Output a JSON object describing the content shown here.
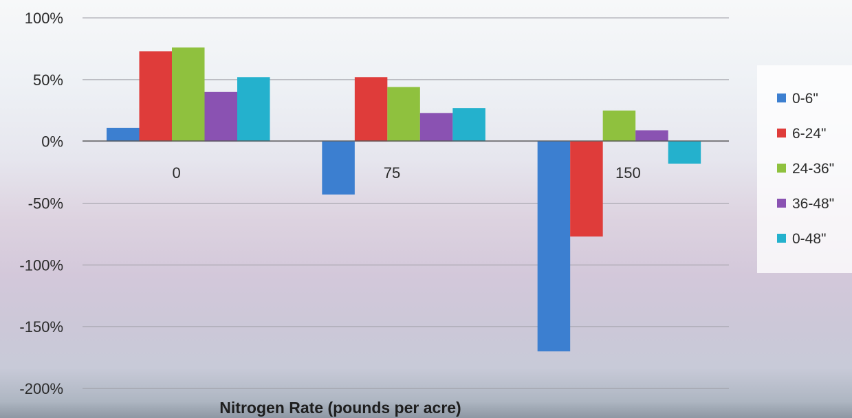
{
  "chart_data": {
    "type": "bar",
    "title": "",
    "xlabel": "Nitrogen Rate (pounds per acre)",
    "ylabel": "",
    "categories": [
      "0",
      "75",
      "150"
    ],
    "series": [
      {
        "name": "0-6\"",
        "color": "#3c7fd0",
        "values": [
          11,
          -43,
          -170
        ]
      },
      {
        "name": "6-24\"",
        "color": "#df3c3a",
        "values": [
          73,
          52,
          -77
        ]
      },
      {
        "name": "24-36\"",
        "color": "#8fc13e",
        "values": [
          76,
          44,
          25
        ]
      },
      {
        "name": "36-48\"",
        "color": "#8a52b2",
        "values": [
          40,
          23,
          9
        ]
      },
      {
        "name": "0-48\"",
        "color": "#24b1cd",
        "values": [
          52,
          27,
          -18
        ]
      }
    ],
    "yticks": [
      "100%",
      "50%",
      "0%",
      "-50%",
      "-100%",
      "-150%",
      "-200%"
    ],
    "ylim": [
      -200,
      100
    ],
    "grid": true,
    "legend": "right"
  }
}
